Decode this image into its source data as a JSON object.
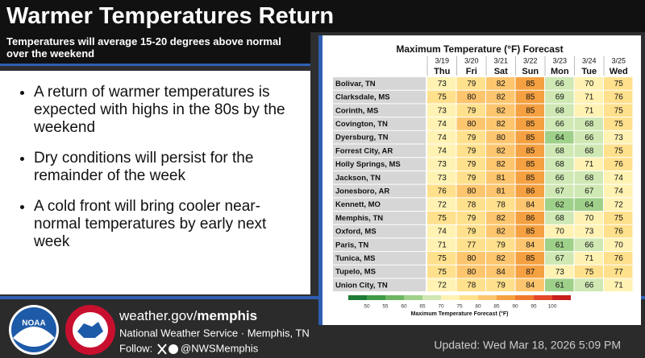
{
  "header": {
    "title": "Warmer Temperatures Return",
    "subtitle": "Temperatures will average 15-20 degrees above normal over the weekend"
  },
  "bullets": [
    "A return of warmer temperatures is expected with highs in the 80s by the weekend",
    "Dry conditions will persist for the remainder of the week",
    "A cold front will bring cooler near-normal temperatures by early next week"
  ],
  "table": {
    "title": "Maximum Temperature (°F) Forecast",
    "dates": [
      "3/19",
      "3/20",
      "3/21",
      "3/22",
      "3/23",
      "3/24",
      "3/25"
    ],
    "days": [
      "Thu",
      "Fri",
      "Sat",
      "Sun",
      "Mon",
      "Tue",
      "Wed"
    ],
    "rows": [
      {
        "city": "Bolivar, TN",
        "values": [
          73,
          79,
          82,
          85,
          66,
          70,
          75
        ]
      },
      {
        "city": "Clarksdale, MS",
        "values": [
          75,
          80,
          82,
          85,
          69,
          71,
          76
        ]
      },
      {
        "city": "Corinth, MS",
        "values": [
          73,
          79,
          82,
          85,
          68,
          71,
          75
        ]
      },
      {
        "city": "Covington, TN",
        "values": [
          74,
          80,
          82,
          85,
          66,
          68,
          75
        ]
      },
      {
        "city": "Dyersburg, TN",
        "values": [
          74,
          79,
          80,
          85,
          64,
          66,
          73
        ]
      },
      {
        "city": "Forrest City, AR",
        "values": [
          74,
          79,
          82,
          85,
          68,
          68,
          75
        ]
      },
      {
        "city": "Holly Springs, MS",
        "values": [
          73,
          79,
          82,
          85,
          68,
          71,
          76
        ]
      },
      {
        "city": "Jackson, TN",
        "values": [
          73,
          79,
          81,
          85,
          66,
          68,
          74
        ]
      },
      {
        "city": "Jonesboro, AR",
        "values": [
          76,
          80,
          81,
          86,
          67,
          67,
          74
        ]
      },
      {
        "city": "Kennett, MO",
        "values": [
          72,
          78,
          78,
          84,
          62,
          64,
          72
        ]
      },
      {
        "city": "Memphis, TN",
        "values": [
          75,
          79,
          82,
          86,
          68,
          70,
          75
        ]
      },
      {
        "city": "Oxford, MS",
        "values": [
          74,
          79,
          82,
          85,
          70,
          73,
          76
        ]
      },
      {
        "city": "Paris, TN",
        "values": [
          71,
          77,
          79,
          84,
          61,
          66,
          70
        ]
      },
      {
        "city": "Tunica, MS",
        "values": [
          75,
          80,
          82,
          85,
          67,
          71,
          76
        ]
      },
      {
        "city": "Tupelo, MS",
        "values": [
          75,
          80,
          84,
          87,
          73,
          75,
          77
        ]
      },
      {
        "city": "Union City, TN",
        "values": [
          72,
          78,
          79,
          84,
          61,
          66,
          71
        ]
      }
    ]
  },
  "scale": {
    "title": "Maximum Temperature Forecast (°F)",
    "ticks": [
      50,
      55,
      60,
      65,
      70,
      75,
      80,
      85,
      90,
      95,
      100
    ],
    "colors": [
      "#1e7a34",
      "#3f9a48",
      "#6cb561",
      "#9fd08a",
      "#cfe8b4",
      "#fff2b3",
      "#ffe08c",
      "#fdc66e",
      "#f5a142",
      "#ef7a2e",
      "#e4472b",
      "#c81e1e"
    ]
  },
  "footer": {
    "site": "weather.gov/",
    "site_bold": "memphis",
    "office": "National Weather Service · Memphis, TN",
    "follow": "Follow:",
    "handle": "@NWSMemphis",
    "updated": "Updated: Wed Mar 18, 2026 5:09 PM",
    "logo": "NOAA"
  }
}
